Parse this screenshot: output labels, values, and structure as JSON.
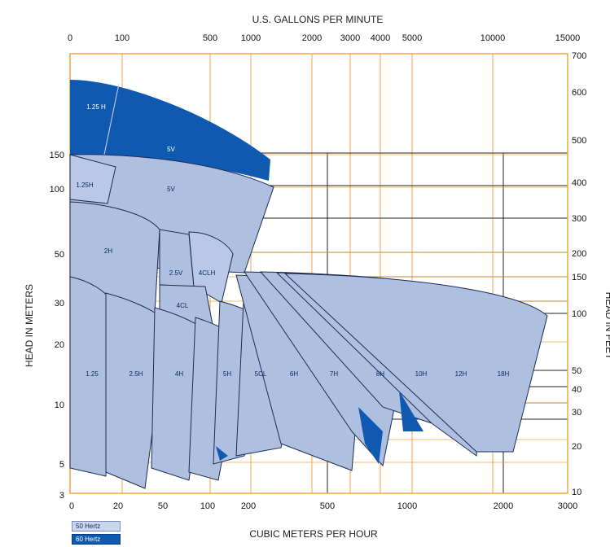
{
  "chart_data": {
    "type": "area",
    "title_top": "U.S. GALLONS PER MINUTE",
    "xlabel_bottom": "CUBIC METERS PER HOUR",
    "ylabel_left": "HEAD IN METERS",
    "ylabel_right": "HEAD IN FEET",
    "top_ticks": [
      "0",
      "100",
      "500",
      "1000",
      "2000",
      "3000",
      "4000",
      "5000",
      "10000",
      "15000"
    ],
    "bottom_ticks": [
      "0",
      "20",
      "50",
      "100",
      "200",
      "500",
      "1000",
      "2000",
      "3000"
    ],
    "left_ticks": [
      "150",
      "100",
      "50",
      "30",
      "20",
      "10",
      "5",
      "3"
    ],
    "right_ticks": [
      "700",
      "600",
      "500",
      "400",
      "300",
      "200",
      "150",
      "100",
      "50",
      "40",
      "30",
      "20",
      "10"
    ],
    "x_scale": "log",
    "y_scale": "log",
    "grid": true,
    "legend": [
      {
        "label": "50 Hertz",
        "color": "#c9d6ee"
      },
      {
        "label": "60 Hertz",
        "color": "#1059b0"
      }
    ],
    "pump_labels_50hz": [
      "1.25H",
      "5V",
      "2H",
      "2.5V",
      "4CLH",
      "4CL",
      "1.25",
      "2.5H",
      "4H",
      "5H",
      "5CL",
      "6H",
      "7H",
      "8H",
      "10H",
      "12H",
      "18H"
    ],
    "pump_labels_60hz": [
      "1.25 H",
      "5V"
    ],
    "colors": {
      "hz50_fill": "#aebfe0",
      "hz50_light": "#d3def1",
      "hz60_fill": "#1059b0",
      "grid_orange": "#f2a640",
      "grid_dark": "#222222"
    }
  }
}
